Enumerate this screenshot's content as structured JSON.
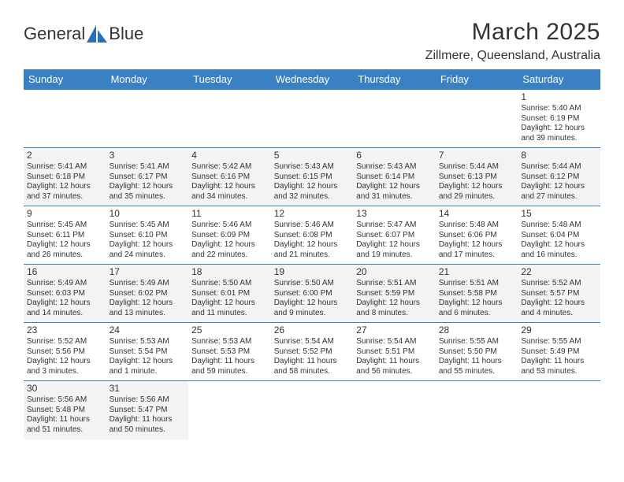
{
  "brand": {
    "part1": "General",
    "part2": "Blue"
  },
  "colors": {
    "header_bg": "#3a81c3",
    "header_text": "#ffffff",
    "border": "#3a81c3",
    "row_alt_bg": "#f3f3f3",
    "text": "#333333",
    "logo_blue": "#2a70b8"
  },
  "title": "March 2025",
  "location": "Zillmere, Queensland, Australia",
  "day_headers": [
    "Sunday",
    "Monday",
    "Tuesday",
    "Wednesday",
    "Thursday",
    "Friday",
    "Saturday"
  ],
  "weeks": [
    [
      null,
      null,
      null,
      null,
      null,
      null,
      {
        "n": "1",
        "sr": "5:40 AM",
        "ss": "6:19 PM",
        "dl": "12 hours and 39 minutes."
      }
    ],
    [
      {
        "n": "2",
        "sr": "5:41 AM",
        "ss": "6:18 PM",
        "dl": "12 hours and 37 minutes."
      },
      {
        "n": "3",
        "sr": "5:41 AM",
        "ss": "6:17 PM",
        "dl": "12 hours and 35 minutes."
      },
      {
        "n": "4",
        "sr": "5:42 AM",
        "ss": "6:16 PM",
        "dl": "12 hours and 34 minutes."
      },
      {
        "n": "5",
        "sr": "5:43 AM",
        "ss": "6:15 PM",
        "dl": "12 hours and 32 minutes."
      },
      {
        "n": "6",
        "sr": "5:43 AM",
        "ss": "6:14 PM",
        "dl": "12 hours and 31 minutes."
      },
      {
        "n": "7",
        "sr": "5:44 AM",
        "ss": "6:13 PM",
        "dl": "12 hours and 29 minutes."
      },
      {
        "n": "8",
        "sr": "5:44 AM",
        "ss": "6:12 PM",
        "dl": "12 hours and 27 minutes."
      }
    ],
    [
      {
        "n": "9",
        "sr": "5:45 AM",
        "ss": "6:11 PM",
        "dl": "12 hours and 26 minutes."
      },
      {
        "n": "10",
        "sr": "5:45 AM",
        "ss": "6:10 PM",
        "dl": "12 hours and 24 minutes."
      },
      {
        "n": "11",
        "sr": "5:46 AM",
        "ss": "6:09 PM",
        "dl": "12 hours and 22 minutes."
      },
      {
        "n": "12",
        "sr": "5:46 AM",
        "ss": "6:08 PM",
        "dl": "12 hours and 21 minutes."
      },
      {
        "n": "13",
        "sr": "5:47 AM",
        "ss": "6:07 PM",
        "dl": "12 hours and 19 minutes."
      },
      {
        "n": "14",
        "sr": "5:48 AM",
        "ss": "6:06 PM",
        "dl": "12 hours and 17 minutes."
      },
      {
        "n": "15",
        "sr": "5:48 AM",
        "ss": "6:04 PM",
        "dl": "12 hours and 16 minutes."
      }
    ],
    [
      {
        "n": "16",
        "sr": "5:49 AM",
        "ss": "6:03 PM",
        "dl": "12 hours and 14 minutes."
      },
      {
        "n": "17",
        "sr": "5:49 AM",
        "ss": "6:02 PM",
        "dl": "12 hours and 13 minutes."
      },
      {
        "n": "18",
        "sr": "5:50 AM",
        "ss": "6:01 PM",
        "dl": "12 hours and 11 minutes."
      },
      {
        "n": "19",
        "sr": "5:50 AM",
        "ss": "6:00 PM",
        "dl": "12 hours and 9 minutes."
      },
      {
        "n": "20",
        "sr": "5:51 AM",
        "ss": "5:59 PM",
        "dl": "12 hours and 8 minutes."
      },
      {
        "n": "21",
        "sr": "5:51 AM",
        "ss": "5:58 PM",
        "dl": "12 hours and 6 minutes."
      },
      {
        "n": "22",
        "sr": "5:52 AM",
        "ss": "5:57 PM",
        "dl": "12 hours and 4 minutes."
      }
    ],
    [
      {
        "n": "23",
        "sr": "5:52 AM",
        "ss": "5:56 PM",
        "dl": "12 hours and 3 minutes."
      },
      {
        "n": "24",
        "sr": "5:53 AM",
        "ss": "5:54 PM",
        "dl": "12 hours and 1 minute."
      },
      {
        "n": "25",
        "sr": "5:53 AM",
        "ss": "5:53 PM",
        "dl": "11 hours and 59 minutes."
      },
      {
        "n": "26",
        "sr": "5:54 AM",
        "ss": "5:52 PM",
        "dl": "11 hours and 58 minutes."
      },
      {
        "n": "27",
        "sr": "5:54 AM",
        "ss": "5:51 PM",
        "dl": "11 hours and 56 minutes."
      },
      {
        "n": "28",
        "sr": "5:55 AM",
        "ss": "5:50 PM",
        "dl": "11 hours and 55 minutes."
      },
      {
        "n": "29",
        "sr": "5:55 AM",
        "ss": "5:49 PM",
        "dl": "11 hours and 53 minutes."
      }
    ],
    [
      {
        "n": "30",
        "sr": "5:56 AM",
        "ss": "5:48 PM",
        "dl": "11 hours and 51 minutes."
      },
      {
        "n": "31",
        "sr": "5:56 AM",
        "ss": "5:47 PM",
        "dl": "11 hours and 50 minutes."
      },
      null,
      null,
      null,
      null,
      null
    ]
  ],
  "labels": {
    "sunrise": "Sunrise: ",
    "sunset": "Sunset: ",
    "daylight": "Daylight: "
  }
}
